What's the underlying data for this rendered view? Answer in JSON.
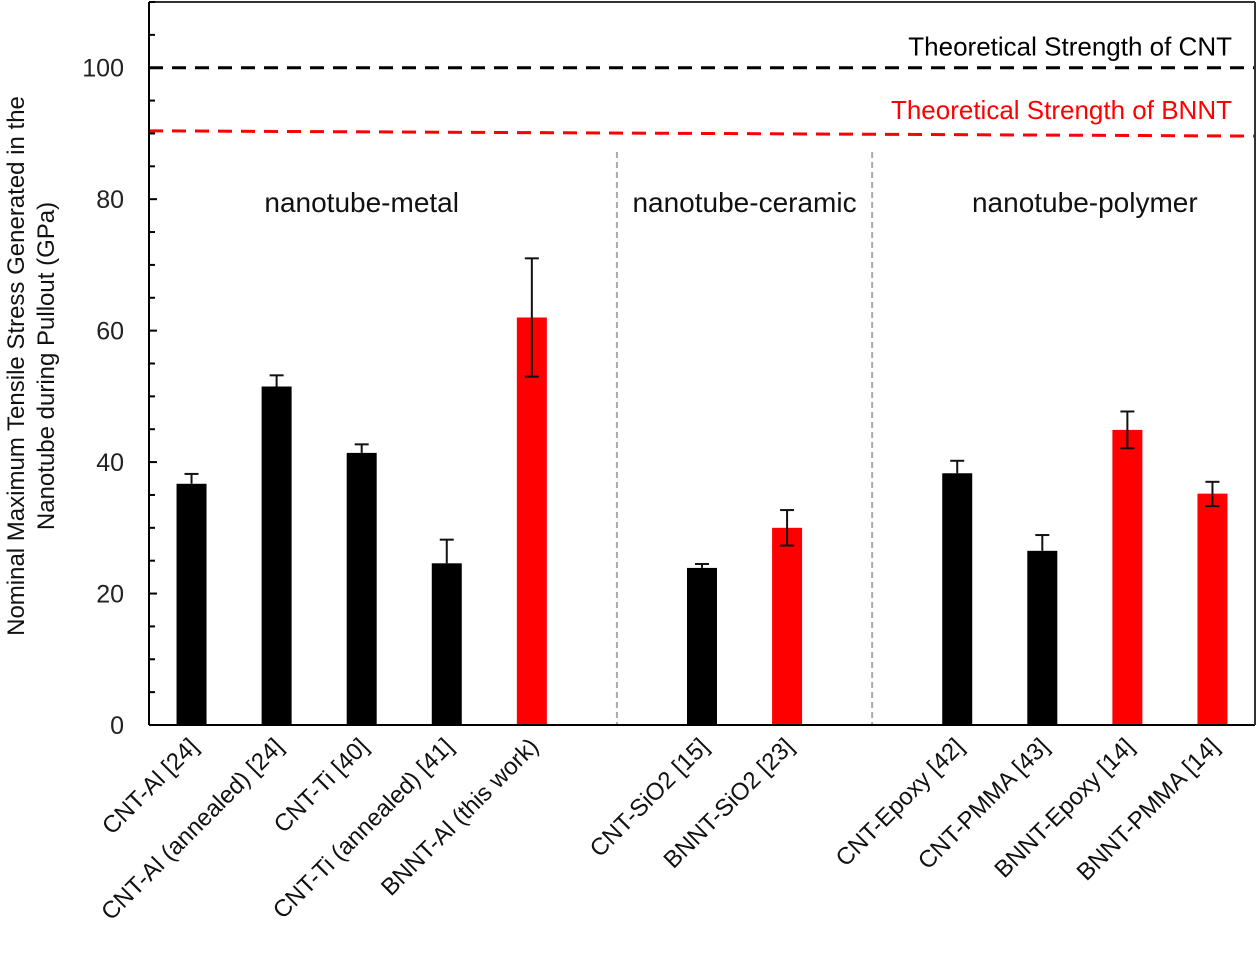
{
  "chart_data": {
    "type": "bar",
    "title": "",
    "ylabel_lines": [
      "Nominal Maximum Tensile Stress Generated in the",
      "Nanotube during Pullout (GPa)"
    ],
    "xlabel": "",
    "ylim": [
      0,
      110
    ],
    "yticks": [
      0,
      20,
      40,
      60,
      80,
      100
    ],
    "ytick_labels": [
      "0",
      "20",
      "40",
      "60",
      "80",
      "100"
    ],
    "minor_tick_step": 5,
    "grid": false,
    "colors": {
      "cnt": "#000000",
      "bnnt": "#ff0000",
      "separator": "#aaaaaa"
    },
    "groups": [
      {
        "label": "nanotube-metal",
        "slot_start": 0,
        "slot_end": 5
      },
      {
        "label": "nanotube-ceramic",
        "slot_start": 6,
        "slot_end": 8
      },
      {
        "label": "nanotube-polymer",
        "slot_start": 9,
        "slot_end": 13
      }
    ],
    "bars": [
      {
        "category": "CNT-Al [24]",
        "value": 36.7,
        "err_low": 36.7,
        "err_high": 38.2,
        "kind": "cnt",
        "slot": 0
      },
      {
        "category": "CNT-Al (annealed) [24]",
        "value": 51.5,
        "err_low": 51.5,
        "err_high": 53.2,
        "kind": "cnt",
        "slot": 1
      },
      {
        "category": "CNT-Ti [40]",
        "value": 41.4,
        "err_low": 41.4,
        "err_high": 42.7,
        "kind": "cnt",
        "slot": 2
      },
      {
        "category": "CNT-Ti (annealed) [41]",
        "value": 24.6,
        "err_low": 24.6,
        "err_high": 28.2,
        "kind": "cnt",
        "slot": 3
      },
      {
        "category": "BNNT-Al (this work)",
        "value": 62,
        "err_low": 53,
        "err_high": 71,
        "kind": "bnnt",
        "slot": 4
      },
      {
        "category": "CNT-SiO2 [15]",
        "value": 23.9,
        "err_low": 23.9,
        "err_high": 24.5,
        "kind": "cnt",
        "slot": 6
      },
      {
        "category": "BNNT-SiO2 [23]",
        "value": 30,
        "err_low": 27.3,
        "err_high": 32.7,
        "kind": "bnnt",
        "slot": 7
      },
      {
        "category": "CNT-Epoxy [42]",
        "value": 38.3,
        "err_low": 38.3,
        "err_high": 40.2,
        "kind": "cnt",
        "slot": 9
      },
      {
        "category": "CNT-PMMA [43]",
        "value": 26.5,
        "err_low": 26.5,
        "err_high": 28.9,
        "kind": "cnt",
        "slot": 10
      },
      {
        "category": "BNNT-Epoxy [14]",
        "value": 44.9,
        "err_low": 42.1,
        "err_high": 47.7,
        "kind": "bnnt",
        "slot": 11
      },
      {
        "category": "BNNT-PMMA [14]",
        "value": 35.2,
        "err_low": 33.3,
        "err_high": 37,
        "kind": "bnnt",
        "slot": 12
      }
    ],
    "reference_lines": [
      {
        "label": "Theoretical Strength of CNT",
        "y_start": 100,
        "y_end": 100,
        "kind": "cnt"
      },
      {
        "label": "Theoretical Strength of BNNT",
        "y_start": 90.4,
        "y_end": 89.6,
        "kind": "bnnt"
      }
    ],
    "separators_after_slots": [
      5,
      8
    ],
    "total_slots": 13
  }
}
